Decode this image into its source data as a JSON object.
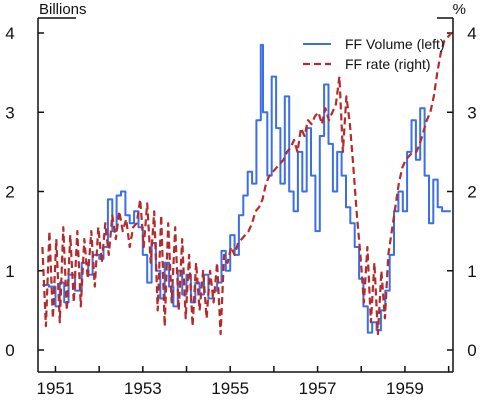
{
  "chart_data": {
    "type": "line",
    "title": "",
    "xlabel": "",
    "left_axis": {
      "unit_label": "Billions",
      "range": [
        0,
        4
      ],
      "ticks": [
        "0",
        "1",
        "2",
        "3",
        "4"
      ]
    },
    "right_axis": {
      "unit_label": "%",
      "range": [
        0,
        4
      ],
      "ticks": [
        "0",
        "1",
        "2",
        "3",
        "4"
      ]
    },
    "x_range": [
      1950.6,
      1960.1
    ],
    "x_ticks": [
      "1951",
      "1953",
      "1955",
      "1957",
      "1959"
    ],
    "grid": false,
    "legend_position": "top-right",
    "series": [
      {
        "name": "FF Volume (left)",
        "axis": "left",
        "color": "#3b6fe8",
        "style": "solid",
        "x": [
          1950.7,
          1950.85,
          1951.0,
          1951.1,
          1951.2,
          1951.3,
          1951.45,
          1951.6,
          1951.75,
          1951.85,
          1952.0,
          1952.1,
          1952.2,
          1952.3,
          1952.4,
          1952.5,
          1952.6,
          1952.7,
          1952.8,
          1952.9,
          1953.0,
          1953.1,
          1953.2,
          1953.3,
          1953.4,
          1953.5,
          1953.6,
          1953.7,
          1953.8,
          1953.9,
          1954.0,
          1954.1,
          1954.2,
          1954.3,
          1954.4,
          1954.5,
          1954.6,
          1954.7,
          1954.8,
          1954.9,
          1955.0,
          1955.1,
          1955.2,
          1955.3,
          1955.4,
          1955.5,
          1955.6,
          1955.7,
          1955.75,
          1955.85,
          1955.95,
          1956.05,
          1956.15,
          1956.25,
          1956.35,
          1956.45,
          1956.55,
          1956.65,
          1956.75,
          1956.85,
          1956.95,
          1957.05,
          1957.15,
          1957.25,
          1957.35,
          1957.45,
          1957.55,
          1957.65,
          1957.75,
          1957.85,
          1957.95,
          1958.05,
          1958.15,
          1958.25,
          1958.35,
          1958.45,
          1958.55,
          1958.65,
          1958.75,
          1958.85,
          1958.95,
          1959.05,
          1959.15,
          1959.25,
          1959.35,
          1959.45,
          1959.55,
          1959.65,
          1959.75,
          1959.85,
          1959.95,
          1960.05
        ],
        "values": [
          0.82,
          0.8,
          0.55,
          0.85,
          0.6,
          0.95,
          0.75,
          1.1,
          0.95,
          1.2,
          1.15,
          1.3,
          1.9,
          1.5,
          1.95,
          2.0,
          1.7,
          1.6,
          1.75,
          1.55,
          1.2,
          0.85,
          1.35,
          1.0,
          0.65,
          1.1,
          0.8,
          0.55,
          1.0,
          0.7,
          0.95,
          0.6,
          0.85,
          0.7,
          0.95,
          0.65,
          0.75,
          0.85,
          1.25,
          1.0,
          1.45,
          1.2,
          1.7,
          1.95,
          2.25,
          2.1,
          2.9,
          3.85,
          3.0,
          2.2,
          3.45,
          2.8,
          2.1,
          3.2,
          2.0,
          1.75,
          2.5,
          2.0,
          2.8,
          2.2,
          1.5,
          2.7,
          3.35,
          2.6,
          2.0,
          2.5,
          2.2,
          1.8,
          1.6,
          1.3,
          0.9,
          0.55,
          0.22,
          0.35,
          0.25,
          0.5,
          0.75,
          1.2,
          1.75,
          2.0,
          1.75,
          2.5,
          2.9,
          2.4,
          3.05,
          2.2,
          1.6,
          2.15,
          1.8,
          1.75,
          1.75,
          1.75
        ]
      },
      {
        "name": "FF rate (right)",
        "axis": "right",
        "color": "#b52a2a",
        "style": "dashed",
        "x": [
          1950.7,
          1950.78,
          1950.86,
          1950.94,
          1951.02,
          1951.1,
          1951.18,
          1951.26,
          1951.34,
          1951.42,
          1951.5,
          1951.58,
          1951.66,
          1951.74,
          1951.82,
          1951.9,
          1951.98,
          1952.06,
          1952.14,
          1952.22,
          1952.3,
          1952.38,
          1952.46,
          1952.54,
          1952.62,
          1952.7,
          1952.78,
          1952.86,
          1952.94,
          1953.02,
          1953.1,
          1953.18,
          1953.26,
          1953.34,
          1953.42,
          1953.5,
          1953.58,
          1953.66,
          1953.74,
          1953.82,
          1953.9,
          1953.98,
          1954.06,
          1954.14,
          1954.22,
          1954.3,
          1954.38,
          1954.46,
          1954.54,
          1954.62,
          1954.7,
          1954.78,
          1954.86,
          1954.94,
          1955.02,
          1955.1,
          1955.18,
          1955.26,
          1955.34,
          1955.42,
          1955.5,
          1955.58,
          1955.66,
          1955.74,
          1955.82,
          1955.9,
          1955.98,
          1956.06,
          1956.14,
          1956.22,
          1956.3,
          1956.38,
          1956.46,
          1956.54,
          1956.62,
          1956.7,
          1956.78,
          1956.86,
          1956.94,
          1957.02,
          1957.1,
          1957.18,
          1957.26,
          1957.34,
          1957.42,
          1957.5,
          1957.58,
          1957.66,
          1957.74,
          1957.82,
          1957.9,
          1957.98,
          1958.06,
          1958.14,
          1958.22,
          1958.3,
          1958.38,
          1958.46,
          1958.54,
          1958.62,
          1958.7,
          1958.78,
          1958.86,
          1958.94,
          1959.02,
          1959.1,
          1959.18,
          1959.26,
          1959.34,
          1959.42,
          1959.5,
          1959.58,
          1959.66,
          1959.74,
          1959.82,
          1959.9,
          1959.98,
          1960.06
        ],
        "values": [
          1.3,
          0.3,
          1.5,
          0.4,
          1.4,
          0.35,
          1.55,
          0.5,
          1.45,
          0.6,
          1.5,
          0.55,
          1.4,
          0.9,
          1.5,
          0.8,
          1.55,
          1.1,
          1.6,
          1.2,
          1.7,
          1.4,
          1.75,
          1.5,
          1.65,
          1.3,
          1.55,
          1.6,
          1.9,
          1.3,
          1.85,
          1.1,
          1.75,
          0.5,
          1.7,
          0.3,
          1.6,
          0.6,
          1.55,
          0.5,
          1.4,
          0.4,
          1.2,
          0.3,
          1.1,
          0.5,
          1.0,
          0.4,
          1.0,
          0.6,
          1.1,
          0.2,
          1.2,
          1.1,
          1.3,
          1.2,
          1.35,
          1.4,
          1.45,
          1.5,
          1.6,
          1.75,
          1.8,
          1.9,
          2.1,
          2.2,
          2.25,
          2.3,
          2.35,
          2.4,
          2.5,
          2.55,
          2.65,
          2.5,
          2.8,
          2.7,
          2.9,
          2.85,
          2.95,
          3.0,
          2.85,
          3.05,
          2.9,
          3.0,
          3.1,
          3.45,
          2.5,
          3.2,
          2.85,
          2.3,
          1.7,
          1.2,
          0.6,
          1.3,
          0.35,
          1.1,
          0.2,
          1.0,
          0.4,
          1.2,
          1.5,
          1.8,
          2.1,
          2.3,
          2.4,
          2.45,
          2.5,
          2.5,
          2.6,
          2.75,
          2.9,
          3.0,
          3.2,
          3.5,
          3.75,
          3.9,
          3.95,
          4.0
        ]
      }
    ]
  }
}
